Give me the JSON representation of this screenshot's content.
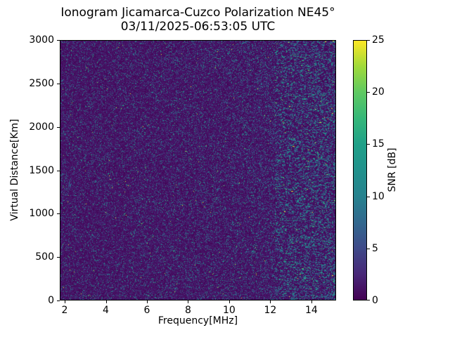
{
  "figure": {
    "title": "Ionogram Jicamarca-Cuzco Polarization NE45°",
    "subtitle": "03/11/2025-06:53:05 UTC"
  },
  "chart_data": {
    "type": "heatmap",
    "title": "Ionogram Jicamarca-Cuzco Polarization NE45°",
    "subtitle": "03/11/2025-06:53:05 UTC",
    "xlabel": "Frequency[MHz]",
    "ylabel": "Virtual Distance[Km]",
    "xlim": [
      1.76,
      15.2
    ],
    "ylim": [
      0,
      3000
    ],
    "xticks": [
      2,
      4,
      6,
      8,
      10,
      12,
      14
    ],
    "yticks": [
      0,
      500,
      1000,
      1500,
      2000,
      2500,
      3000
    ],
    "grid": false,
    "legend": "none",
    "colorbar": {
      "label": "SNR [dB]",
      "min": 0,
      "max": 25,
      "ticks": [
        0,
        5,
        10,
        15,
        20,
        25
      ],
      "colormap": "viridis",
      "position": "right"
    },
    "colormap_stops": [
      [
        0.0,
        "#440154"
      ],
      [
        0.1,
        "#482878"
      ],
      [
        0.2,
        "#3e4a89"
      ],
      [
        0.3,
        "#31688e"
      ],
      [
        0.4,
        "#26828e"
      ],
      [
        0.5,
        "#21918c"
      ],
      [
        0.6,
        "#1fa088"
      ],
      [
        0.7,
        "#35b779"
      ],
      [
        0.8,
        "#5ec962"
      ],
      [
        0.9,
        "#9fda3a"
      ],
      [
        1.0,
        "#fde725"
      ]
    ],
    "content_summary": "Uniform speckled receiver noise over the full frequency/virtual-distance map: dark-purple background near 0 dB with sparse teal speckles of roughly 4-14 dB, occasional green points near 15-18 dB and very rare yellow pixels above 20 dB. No coherent ionospheric echo trace is visible. Noise density and intensity increase toward 13-15 MHz, where short horizontal teal/green dashes appear, strongest along the right edge.",
    "noise_model": {
      "seed": 20250311,
      "background_max_db": 2.2,
      "speckle_prob_base": 0.13,
      "speckle_prob_right_extra": 0.1,
      "dash_min_freq_frac": 0.78,
      "dash_prob": 0.35,
      "level_weights": [
        0.72,
        0.94,
        0.993
      ],
      "level_ranges_db": [
        [
          3.5,
          9.5
        ],
        [
          9,
          14
        ],
        [
          13,
          18
        ],
        [
          20,
          25
        ]
      ]
    }
  }
}
